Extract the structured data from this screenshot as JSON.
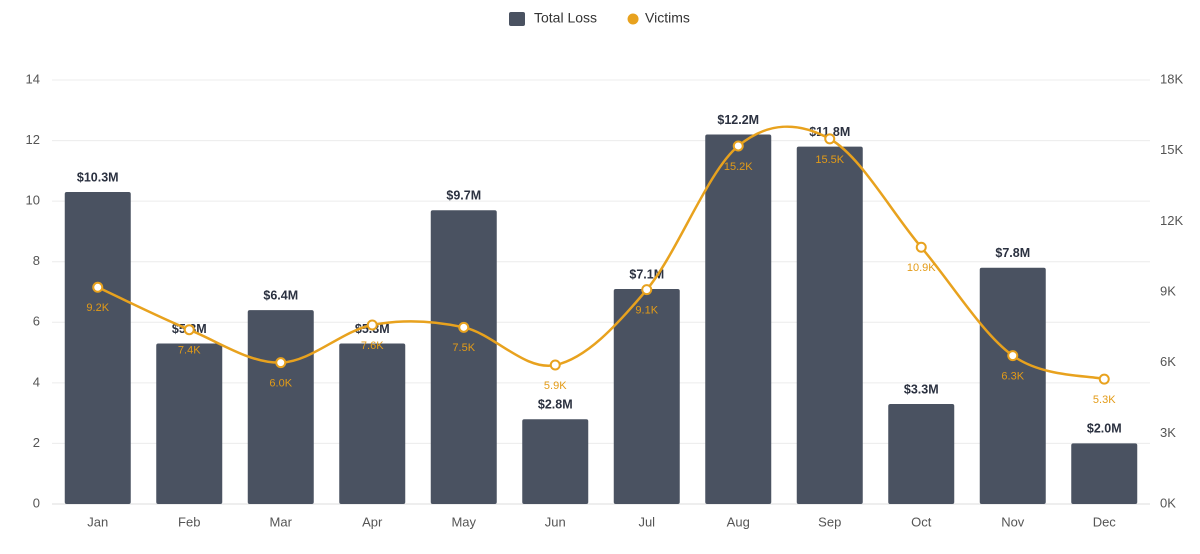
{
  "chart_data": {
    "type": "combo",
    "categories": [
      "Jan",
      "Feb",
      "Mar",
      "Apr",
      "May",
      "Jun",
      "Jul",
      "Aug",
      "Sep",
      "Oct",
      "Nov",
      "Dec"
    ],
    "series": [
      {
        "name": "Total Loss",
        "type": "bar",
        "color": "#4a5261",
        "values": [
          10.3,
          5.3,
          6.4,
          5.3,
          9.7,
          2.8,
          7.1,
          12.2,
          11.8,
          3.3,
          7.8,
          2.0
        ],
        "value_labels": [
          "$10.3M",
          "$5.3M",
          "$6.4M",
          "$5.3M",
          "$9.7M",
          "$2.8M",
          "$7.1M",
          "$12.2M",
          "$11.8M",
          "$3.3M",
          "$7.8M",
          "$2.0M"
        ]
      },
      {
        "name": "Victims",
        "type": "line",
        "axis": "y2",
        "color": "#e8a21e",
        "values": [
          9200,
          7400,
          6000,
          7600,
          7500,
          5900,
          9100,
          15200,
          15500,
          10900,
          6300,
          5300
        ],
        "value_labels": [
          "9.2K",
          "7.4K",
          "6.0K",
          "7.6K",
          "7.5K",
          "5.9K",
          "9.1K",
          "15.2K",
          "15.5K",
          "10.9K",
          "6.3K",
          "5.3K"
        ]
      }
    ],
    "ylim": [
      0,
      14
    ],
    "yticks": [
      0,
      2,
      4,
      6,
      8,
      10,
      12,
      14
    ],
    "y2lim": [
      0,
      18000
    ],
    "y2ticks": [
      {
        "value": 0,
        "label": "0K"
      },
      {
        "value": 3000,
        "label": "3K"
      },
      {
        "value": 6000,
        "label": "6K"
      },
      {
        "value": 9000,
        "label": "9K"
      },
      {
        "value": 12000,
        "label": "12K"
      },
      {
        "value": 15000,
        "label": "15K"
      },
      {
        "value": 18000,
        "label": "18K"
      }
    ],
    "grid": true,
    "legend": "top"
  }
}
